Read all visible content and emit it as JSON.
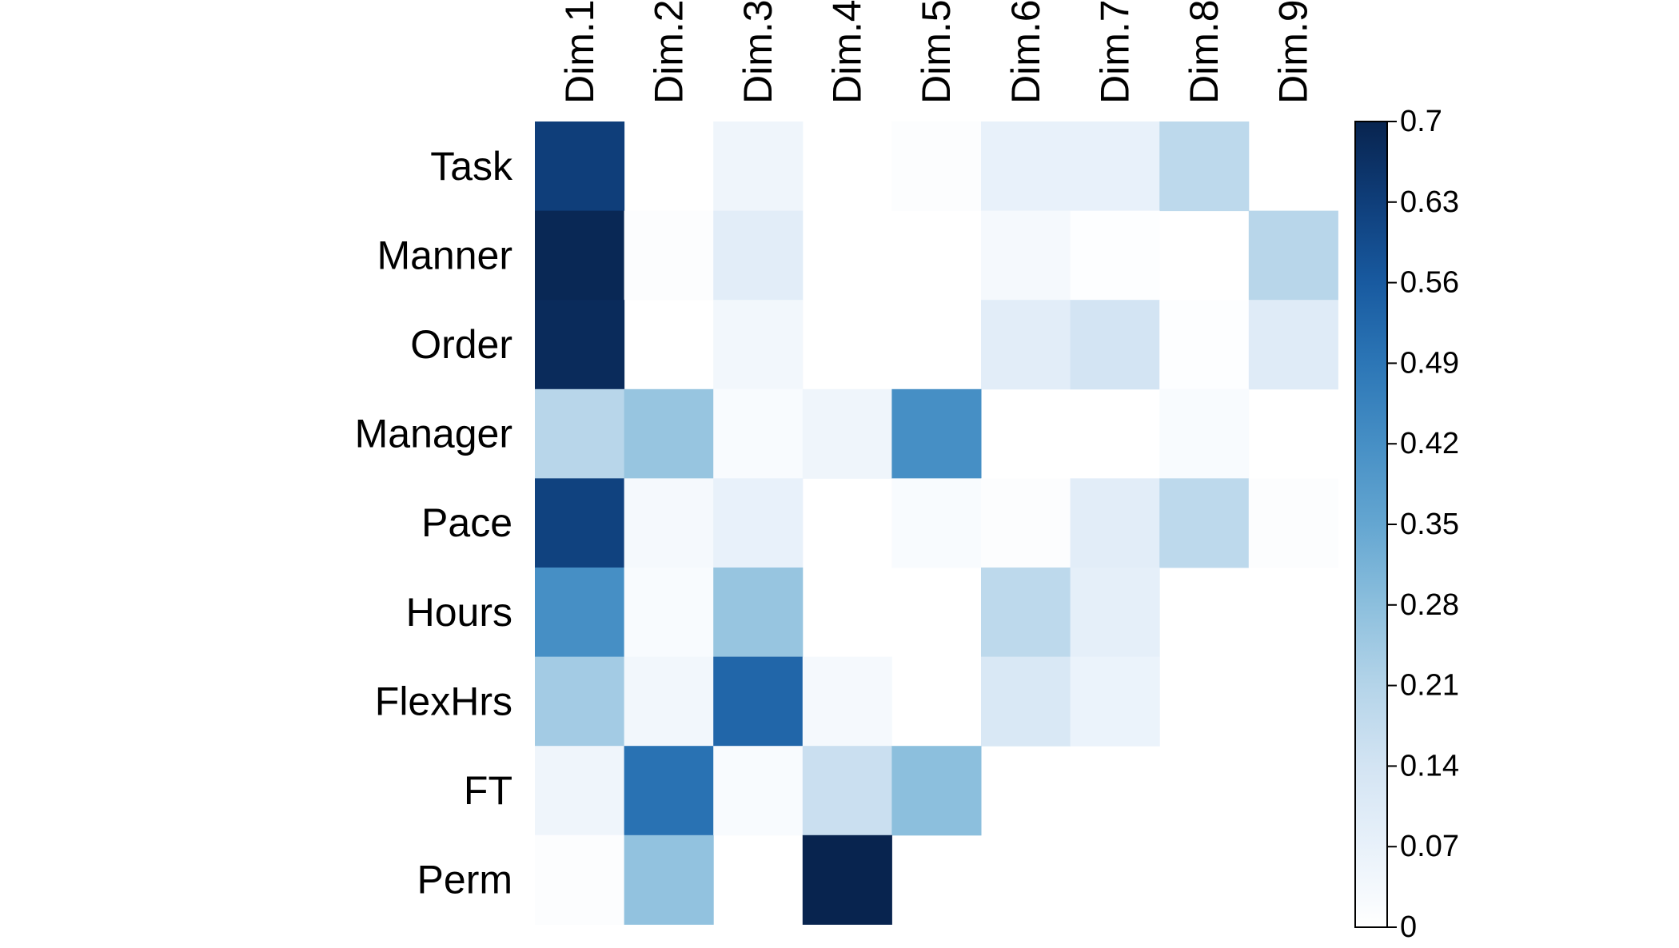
{
  "chart_data": {
    "type": "heatmap",
    "rows": [
      "Task",
      "Manner",
      "Order",
      "Manager",
      "Pace",
      "Hours",
      "FlexHrs",
      "FT",
      "Perm"
    ],
    "columns": [
      "Dim.1",
      "Dim.2",
      "Dim.3",
      "Dim.4",
      "Dim.5",
      "Dim.6",
      "Dim.7",
      "Dim.8",
      "Dim.9"
    ],
    "values": [
      [
        0.63,
        null,
        0.05,
        null,
        0.01,
        0.07,
        0.07,
        0.19,
        null
      ],
      [
        0.69,
        0.01,
        0.09,
        null,
        null,
        0.03,
        0.005,
        null,
        0.2
      ],
      [
        0.68,
        null,
        0.04,
        null,
        null,
        0.09,
        0.14,
        0.005,
        0.1
      ],
      [
        0.2,
        0.26,
        0.02,
        0.05,
        0.42,
        null,
        null,
        0.02,
        null
      ],
      [
        0.62,
        0.03,
        0.07,
        null,
        0.02,
        0.01,
        0.09,
        0.19,
        0.01
      ],
      [
        0.42,
        0.02,
        0.26,
        null,
        null,
        0.19,
        0.08,
        null,
        null
      ],
      [
        0.24,
        0.04,
        0.53,
        0.03,
        null,
        0.12,
        0.06,
        null,
        null
      ],
      [
        0.05,
        0.5,
        0.02,
        0.16,
        0.28,
        null,
        null,
        null,
        null
      ],
      [
        0.01,
        0.27,
        null,
        0.7,
        null,
        null,
        null,
        null,
        null
      ]
    ],
    "colorbar": {
      "min": 0,
      "max": 0.7,
      "ticks": [
        0,
        0.07,
        0.14,
        0.21,
        0.28,
        0.35,
        0.42,
        0.49,
        0.56,
        0.63,
        0.7
      ],
      "tick_labels": [
        "0",
        "0.07",
        "0.14",
        "0.21",
        "0.28",
        "0.35",
        "0.42",
        "0.49",
        "0.56",
        "0.63",
        "0.7"
      ],
      "palette": "Blues",
      "low_color": "#ffffff",
      "high_color": "#08244f"
    },
    "grid": false,
    "legend_position": "right",
    "title": "",
    "xlabel": "",
    "ylabel": ""
  }
}
